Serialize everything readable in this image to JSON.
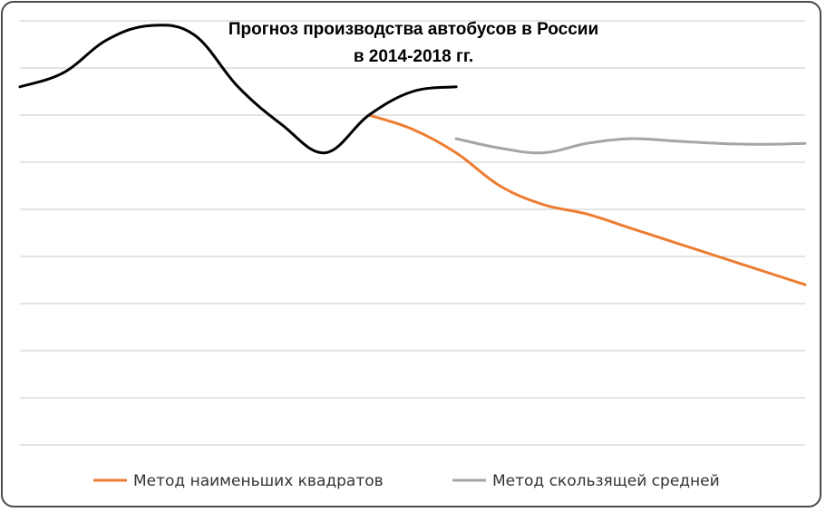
{
  "chart_data": {
    "type": "line",
    "title_lines": [
      "Прогноз производства автобусов в России",
      "в 2014-2018 гг."
    ],
    "xlabel": "",
    "ylabel": "",
    "grid": true,
    "legend": "bottom",
    "x": [
      0,
      1,
      2,
      3,
      4,
      5,
      6,
      7,
      8,
      9,
      10,
      11,
      12,
      13,
      14,
      15,
      16,
      17,
      18
    ],
    "ylim": [
      0,
      9
    ],
    "series": [
      {
        "role": "historical",
        "color": "#000000",
        "x": [
          0,
          1,
          2,
          3,
          4,
          5,
          6,
          7,
          8,
          9,
          10
        ],
        "values": [
          7.6,
          7.9,
          8.6,
          8.9,
          8.7,
          7.6,
          6.8,
          6.2,
          7.0,
          7.5,
          7.6
        ]
      },
      {
        "name": "Метод наименьших квадратов",
        "color": "#ed7d31",
        "x": [
          8,
          9,
          10,
          11,
          12,
          13,
          14,
          15,
          16,
          17,
          18
        ],
        "values": [
          7.0,
          6.7,
          6.2,
          5.5,
          5.1,
          4.9,
          4.6,
          4.3,
          4.0,
          3.7,
          3.4
        ]
      },
      {
        "name": "Метод скользящей средней",
        "color": "#a5a5a5",
        "x": [
          10,
          11,
          12,
          13,
          14,
          15,
          16,
          17,
          18
        ],
        "values": [
          6.5,
          6.3,
          6.2,
          6.4,
          6.5,
          6.45,
          6.4,
          6.38,
          6.4
        ]
      }
    ]
  }
}
